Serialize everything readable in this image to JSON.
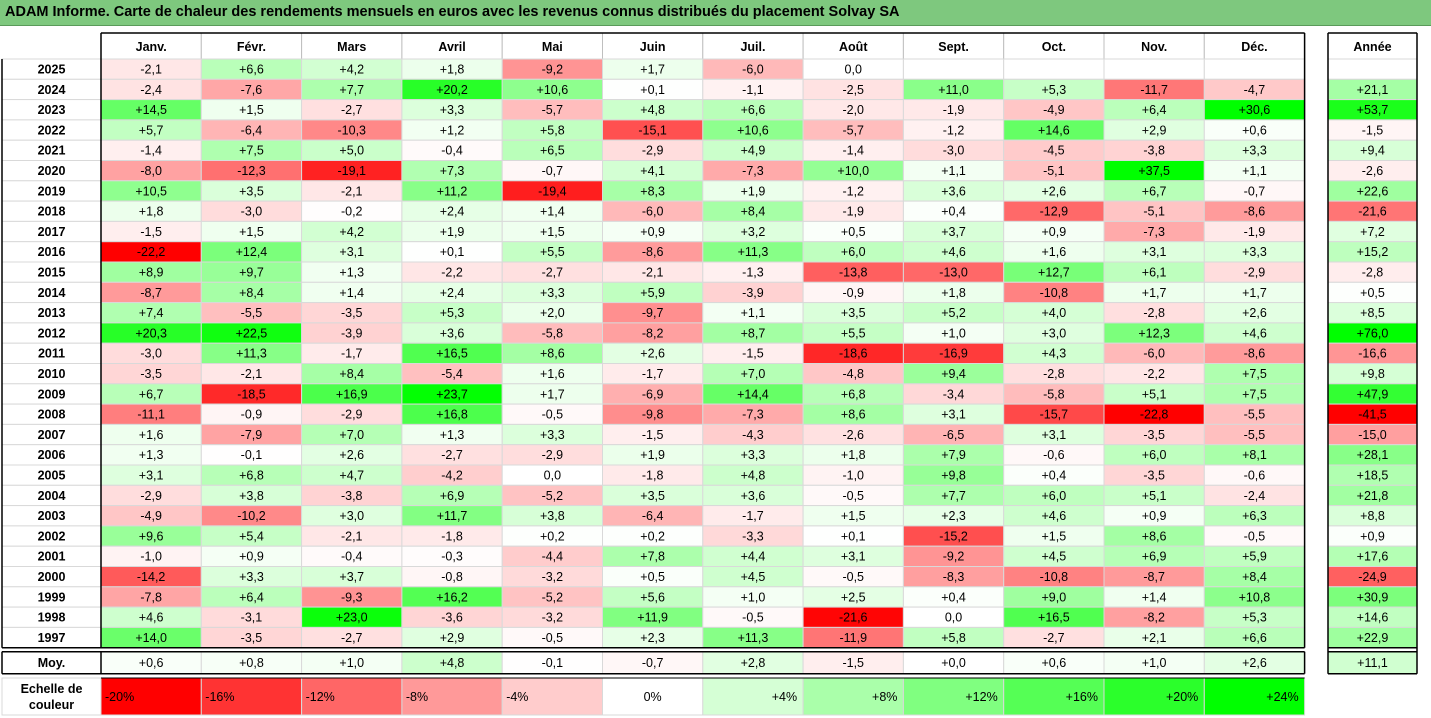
{
  "title": "ADAM Informe. Carte de chaleur des rendements mensuels en euros avec les revenus connus distribués du placement Solvay SA",
  "chart_data": {
    "type": "heatmap",
    "columns": [
      "Janv.",
      "Févr.",
      "Mars",
      "Avril",
      "Mai",
      "Juin",
      "Juil.",
      "Août",
      "Sept.",
      "Oct.",
      "Nov.",
      "Déc."
    ],
    "year_column_label": "Année",
    "rows": [
      {
        "year": "2025",
        "values": [
          "-2,1",
          "+6,6",
          "+4,2",
          "+1,8",
          "-9,2",
          "+1,7",
          "-6,0",
          "0,0",
          "",
          "",
          "",
          ""
        ],
        "annual": ""
      },
      {
        "year": "2024",
        "values": [
          "-2,4",
          "-7,6",
          "+7,7",
          "+20,2",
          "+10,6",
          "+0,1",
          "-1,1",
          "-2,5",
          "+11,0",
          "+5,3",
          "-11,7",
          "-4,7"
        ],
        "annual": "+21,1"
      },
      {
        "year": "2023",
        "values": [
          "+14,5",
          "+1,5",
          "-2,7",
          "+3,3",
          "-5,7",
          "+4,8",
          "+6,6",
          "-2,0",
          "-1,9",
          "-4,9",
          "+6,4",
          "+30,6"
        ],
        "annual": "+53,7"
      },
      {
        "year": "2022",
        "values": [
          "+5,7",
          "-6,4",
          "-10,3",
          "+1,2",
          "+5,8",
          "-15,1",
          "+10,6",
          "-5,7",
          "-1,2",
          "+14,6",
          "+2,9",
          "+0,6"
        ],
        "annual": "-1,5"
      },
      {
        "year": "2021",
        "values": [
          "-1,4",
          "+7,5",
          "+5,0",
          "-0,4",
          "+6,5",
          "-2,9",
          "+4,9",
          "-1,4",
          "-3,0",
          "-4,5",
          "-3,8",
          "+3,3"
        ],
        "annual": "+9,4"
      },
      {
        "year": "2020",
        "values": [
          "-8,0",
          "-12,3",
          "-19,1",
          "+7,3",
          "-0,7",
          "+4,1",
          "-7,3",
          "+10,0",
          "+1,1",
          "-5,1",
          "+37,5",
          "+1,1"
        ],
        "annual": "-2,6"
      },
      {
        "year": "2019",
        "values": [
          "+10,5",
          "+3,5",
          "-2,1",
          "+11,2",
          "-19,4",
          "+8,3",
          "+1,9",
          "-1,2",
          "+3,6",
          "+2,6",
          "+6,7",
          "-0,7"
        ],
        "annual": "+22,6"
      },
      {
        "year": "2018",
        "values": [
          "+1,8",
          "-3,0",
          "-0,2",
          "+2,4",
          "+1,4",
          "-6,0",
          "+8,4",
          "-1,9",
          "+0,4",
          "-12,9",
          "-5,1",
          "-8,6"
        ],
        "annual": "-21,6"
      },
      {
        "year": "2017",
        "values": [
          "-1,5",
          "+1,5",
          "+4,2",
          "+1,9",
          "+1,5",
          "+0,9",
          "+3,2",
          "+0,5",
          "+3,7",
          "+0,9",
          "-7,3",
          "-1,9"
        ],
        "annual": "+7,2"
      },
      {
        "year": "2016",
        "values": [
          "-22,2",
          "+12,4",
          "+3,1",
          "+0,1",
          "+5,5",
          "-8,6",
          "+11,3",
          "+6,0",
          "+4,6",
          "+1,6",
          "+3,1",
          "+3,3"
        ],
        "annual": "+15,2"
      },
      {
        "year": "2015",
        "values": [
          "+8,9",
          "+9,7",
          "+1,3",
          "-2,2",
          "-2,7",
          "-2,1",
          "-1,3",
          "-13,8",
          "-13,0",
          "+12,7",
          "+6,1",
          "-2,9"
        ],
        "annual": "-2,8"
      },
      {
        "year": "2014",
        "values": [
          "-8,7",
          "+8,4",
          "+1,4",
          "+2,4",
          "+3,3",
          "+5,9",
          "-3,9",
          "-0,9",
          "+1,8",
          "-10,8",
          "+1,7",
          "+1,7"
        ],
        "annual": "+0,5"
      },
      {
        "year": "2013",
        "values": [
          "+7,4",
          "-5,5",
          "-3,5",
          "+5,3",
          "+2,0",
          "-9,7",
          "+1,1",
          "+3,5",
          "+5,2",
          "+4,0",
          "-2,8",
          "+2,6"
        ],
        "annual": "+8,5"
      },
      {
        "year": "2012",
        "values": [
          "+20,3",
          "+22,5",
          "-3,9",
          "+3,6",
          "-5,8",
          "-8,2",
          "+8,7",
          "+5,5",
          "+1,0",
          "+3,0",
          "+12,3",
          "+4,6"
        ],
        "annual": "+76,0"
      },
      {
        "year": "2011",
        "values": [
          "-3,0",
          "+11,3",
          "-1,7",
          "+16,5",
          "+8,6",
          "+2,6",
          "-1,5",
          "-18,6",
          "-16,9",
          "+4,3",
          "-6,0",
          "-8,6"
        ],
        "annual": "-16,6"
      },
      {
        "year": "2010",
        "values": [
          "-3,5",
          "-2,1",
          "+8,4",
          "-5,4",
          "+1,6",
          "-1,7",
          "+7,0",
          "-4,8",
          "+9,4",
          "-2,8",
          "-2,2",
          "+7,5"
        ],
        "annual": "+9,8"
      },
      {
        "year": "2009",
        "values": [
          "+6,7",
          "-18,5",
          "+16,9",
          "+23,7",
          "+1,7",
          "-6,9",
          "+14,4",
          "+6,8",
          "-3,4",
          "-5,8",
          "+5,1",
          "+7,5"
        ],
        "annual": "+47,9"
      },
      {
        "year": "2008",
        "values": [
          "-11,1",
          "-0,9",
          "-2,9",
          "+16,8",
          "-0,5",
          "-9,8",
          "-7,3",
          "+8,6",
          "+3,1",
          "-15,7",
          "-22,8",
          "-5,5"
        ],
        "annual": "-41,5"
      },
      {
        "year": "2007",
        "values": [
          "+1,6",
          "-7,9",
          "+7,0",
          "+1,3",
          "+3,3",
          "-1,5",
          "-4,3",
          "-2,6",
          "-6,5",
          "+3,1",
          "-3,5",
          "-5,5"
        ],
        "annual": "-15,0"
      },
      {
        "year": "2006",
        "values": [
          "+1,3",
          "-0,1",
          "+2,6",
          "-2,7",
          "-2,9",
          "+1,9",
          "+3,3",
          "+1,8",
          "+7,9",
          "-0,6",
          "+6,0",
          "+8,1"
        ],
        "annual": "+28,1"
      },
      {
        "year": "2005",
        "values": [
          "+3,1",
          "+6,8",
          "+4,7",
          "-4,2",
          "0,0",
          "-1,8",
          "+4,8",
          "-1,0",
          "+9,8",
          "+0,4",
          "-3,5",
          "-0,6"
        ],
        "annual": "+18,5"
      },
      {
        "year": "2004",
        "values": [
          "-2,9",
          "+3,8",
          "-3,8",
          "+6,9",
          "-5,2",
          "+3,5",
          "+3,6",
          "-0,5",
          "+7,7",
          "+6,0",
          "+5,1",
          "-2,4"
        ],
        "annual": "+21,8"
      },
      {
        "year": "2003",
        "values": [
          "-4,9",
          "-10,2",
          "+3,0",
          "+11,7",
          "+3,8",
          "-6,4",
          "-1,7",
          "+1,5",
          "+2,3",
          "+4,6",
          "+0,9",
          "+6,3"
        ],
        "annual": "+8,8"
      },
      {
        "year": "2002",
        "values": [
          "+9,6",
          "+5,4",
          "-2,1",
          "-1,8",
          "+0,2",
          "+0,2",
          "-3,3",
          "+0,1",
          "-15,2",
          "+1,5",
          "+8,6",
          "-0,5"
        ],
        "annual": "+0,9"
      },
      {
        "year": "2001",
        "values": [
          "-1,0",
          "+0,9",
          "-0,4",
          "-0,3",
          "-4,4",
          "+7,8",
          "+4,4",
          "+3,1",
          "-9,2",
          "+4,5",
          "+6,9",
          "+5,9"
        ],
        "annual": "+17,6"
      },
      {
        "year": "2000",
        "values": [
          "-14,2",
          "+3,3",
          "+3,7",
          "-0,8",
          "-3,2",
          "+0,5",
          "+4,5",
          "-0,5",
          "-8,3",
          "-10,8",
          "-8,7",
          "+8,4"
        ],
        "annual": "-24,9"
      },
      {
        "year": "1999",
        "values": [
          "-7,8",
          "+6,4",
          "-9,3",
          "+16,2",
          "-5,2",
          "+5,6",
          "+1,0",
          "+2,5",
          "+0,4",
          "+9,0",
          "+1,4",
          "+10,8"
        ],
        "annual": "+30,9"
      },
      {
        "year": "1998",
        "values": [
          "+4,6",
          "-3,1",
          "+23,0",
          "-3,6",
          "-3,2",
          "+11,9",
          "-0,5",
          "-21,6",
          "0,0",
          "+16,5",
          "-8,2",
          "+5,3"
        ],
        "annual": "+14,6"
      },
      {
        "year": "1997",
        "values": [
          "+14,0",
          "-3,5",
          "-2,7",
          "+2,9",
          "-0,5",
          "+2,3",
          "+11,3",
          "-11,9",
          "+5,8",
          "-2,7",
          "+2,1",
          "+6,6"
        ],
        "annual": "+22,9"
      }
    ],
    "average": {
      "label": "Moy.",
      "values": [
        "+0,6",
        "+0,8",
        "+1,0",
        "+4,8",
        "-0,1",
        "-0,7",
        "+2,8",
        "-1,5",
        "+0,0",
        "+0,6",
        "+1,0",
        "+2,6"
      ],
      "annual": "+11,1"
    },
    "color_scale": {
      "label_line1": "Echelle de",
      "label_line2": "couleur",
      "stops": [
        "-20%",
        "-16%",
        "-12%",
        "-8%",
        "-4%",
        "0%",
        "+4%",
        "+8%",
        "+12%",
        "+16%",
        "+20%",
        "+24%"
      ],
      "negative_color": "#ff0000",
      "neutral_color": "#ffffff",
      "positive_color": "#00ff00"
    }
  }
}
